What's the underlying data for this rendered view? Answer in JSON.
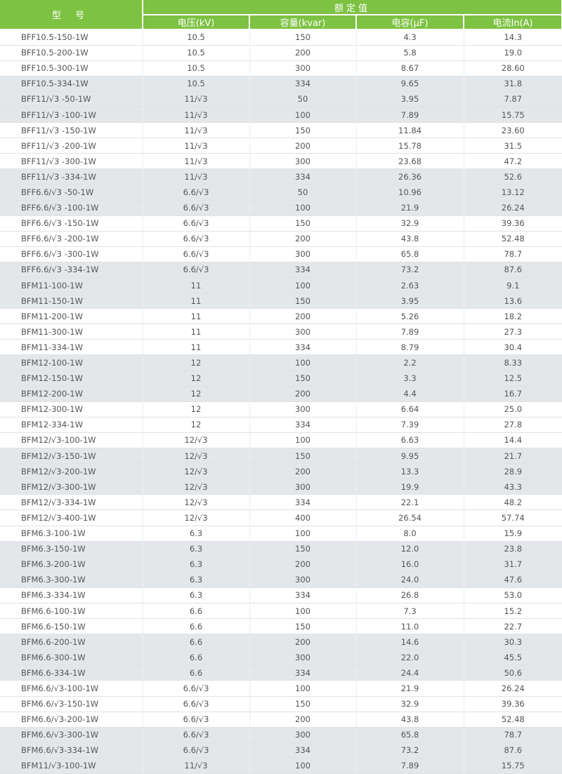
{
  "header": {
    "model": "型 号",
    "rated": "额定值",
    "columns": [
      "电压(kV)",
      "容量(kvar)",
      "电容(μF)",
      "电流In(A)"
    ]
  },
  "colors": {
    "header_bg": "#7dc242",
    "stripe": "#e4e7ea"
  },
  "rows": [
    [
      "BFF10.5-150-1W",
      "10.5",
      "150",
      "4.3",
      "14.3"
    ],
    [
      "BFF10.5-200-1W",
      "10.5",
      "200",
      "5.8",
      "19.0"
    ],
    [
      "BFF10.5-300-1W",
      "10.5",
      "300",
      "8.67",
      "28.60"
    ],
    [
      "BFF10.5-334-1W",
      "10.5",
      "334",
      "9.65",
      "31.8"
    ],
    [
      "BFF11/√3 -50-1W",
      "11/√3",
      "50",
      "3.95",
      "7.87"
    ],
    [
      "BFF11/√3 -100-1W",
      "11/√3",
      "100",
      "7.89",
      "15.75"
    ],
    [
      "BFF11/√3 -150-1W",
      "11/√3",
      "150",
      "11.84",
      "23.60"
    ],
    [
      "BFF11/√3 -200-1W",
      "11/√3",
      "200",
      "15.78",
      "31.5"
    ],
    [
      "BFF11/√3 -300-1W",
      "11/√3",
      "300",
      "23.68",
      "47.2"
    ],
    [
      "BFF11/√3 -334-1W",
      "11/√3",
      "334",
      "26.36",
      "52.6"
    ],
    [
      "BFF6.6/√3 -50-1W",
      "6.6/√3",
      "50",
      "10.96",
      "13.12"
    ],
    [
      "BFF6.6/√3 -100-1W",
      "6.6/√3",
      "100",
      "21.9",
      "26.24"
    ],
    [
      "BFF6.6/√3 -150-1W",
      "6.6/√3",
      "150",
      "32.9",
      "39.36"
    ],
    [
      "BFF6.6/√3 -200-1W",
      "6.6/√3",
      "200",
      "43.8",
      "52.48"
    ],
    [
      "BFF6.6/√3 -300-1W",
      "6.6/√3",
      "300",
      "65.8",
      "78.7"
    ],
    [
      "BFF6.6/√3 -334-1W",
      "6.6/√3",
      "334",
      "73.2",
      "87.6"
    ],
    [
      "BFM11-100-1W",
      "11",
      "100",
      "2.63",
      "9.1"
    ],
    [
      "BFM11-150-1W",
      "11",
      "150",
      "3.95",
      "13.6"
    ],
    [
      "BFM11-200-1W",
      "11",
      "200",
      "5.26",
      "18.2"
    ],
    [
      "BFM11-300-1W",
      "11",
      "300",
      "7.89",
      "27.3"
    ],
    [
      "BFM11-334-1W",
      "11",
      "334",
      "8.79",
      "30.4"
    ],
    [
      "BFM12-100-1W",
      "12",
      "100",
      "2.2",
      "8.33"
    ],
    [
      "BFM12-150-1W",
      "12",
      "150",
      "3.3",
      "12.5"
    ],
    [
      "BFM12-200-1W",
      "12",
      "200",
      "4.4",
      "16.7"
    ],
    [
      "BFM12-300-1W",
      "12",
      "300",
      "6.64",
      "25.0"
    ],
    [
      "BFM12-334-1W",
      "12",
      "334",
      "7.39",
      "27.8"
    ],
    [
      "BFM12/√3-100-1W",
      "12/√3",
      "100",
      "6.63",
      "14.4"
    ],
    [
      "BFM12/√3-150-1W",
      "12/√3",
      "150",
      "9.95",
      "21.7"
    ],
    [
      "BFM12/√3-200-1W",
      "12/√3",
      "200",
      "13.3",
      "28.9"
    ],
    [
      "BFM12/√3-300-1W",
      "12/√3",
      "300",
      "19.9",
      "43.3"
    ],
    [
      "BFM12/√3-334-1W",
      "12/√3",
      "334",
      "22.1",
      "48.2"
    ],
    [
      "BFM12/√3-400-1W",
      "12/√3",
      "400",
      "26.54",
      "57.74"
    ],
    [
      "BFM6.3-100-1W",
      "6.3",
      "100",
      "8.0",
      "15.9"
    ],
    [
      "BFM6.3-150-1W",
      "6.3",
      "150",
      "12.0",
      "23.8"
    ],
    [
      "BFM6.3-200-1W",
      "6.3",
      "200",
      "16.0",
      "31.7"
    ],
    [
      "BFM6.3-300-1W",
      "6.3",
      "300",
      "24.0",
      "47.6"
    ],
    [
      "BFM6.3-334-1W",
      "6.3",
      "334",
      "26.8",
      "53.0"
    ],
    [
      "BFM6.6-100-1W",
      "6.6",
      "100",
      "7.3",
      "15.2"
    ],
    [
      "BFM6.6-150-1W",
      "6.6",
      "150",
      "11.0",
      "22.7"
    ],
    [
      "BFM6.6-200-1W",
      "6.6",
      "200",
      "14.6",
      "30.3"
    ],
    [
      "BFM6.6-300-1W",
      "6.6",
      "300",
      "22.0",
      "45.5"
    ],
    [
      "BFM6.6-334-1W",
      "6.6",
      "334",
      "24.4",
      "50.6"
    ],
    [
      "BFM6.6/√3-100-1W",
      "6.6/√3",
      "100",
      "21.9",
      "26.24"
    ],
    [
      "BFM6.6/√3-150-1W",
      "6.6/√3",
      "150",
      "32.9",
      "39.36"
    ],
    [
      "BFM6.6/√3-200-1W",
      "6.6/√3",
      "200",
      "43.8",
      "52.48"
    ],
    [
      "BFM6.6/√3-300-1W",
      "6.6/√3",
      "300",
      "65.8",
      "78.7"
    ],
    [
      "BFM6.6/√3-334-1W",
      "6.6/√3",
      "334",
      "73.2",
      "87.6"
    ],
    [
      "BFM11/√3-100-1W",
      "11/√3",
      "100",
      "7.89",
      "15.75"
    ]
  ]
}
